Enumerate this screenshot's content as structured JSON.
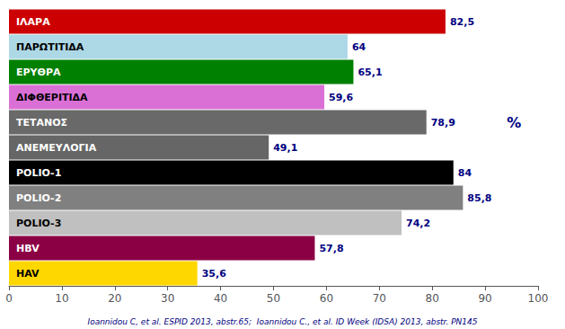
{
  "chart_data": {
    "type": "bar",
    "orientation": "horizontal",
    "categories": [
      "ΙΛΑΡΑ",
      "ΠΑΡΩΤΙΤΙΔΑ",
      "ΕΡΥΘΡΑ",
      "ΔΙΦΘΕΡΙΤΙΔΑ",
      "ΤΕΤΑΝΟΣ",
      "ΑΝΕΜΕΥΛΟΓΙΑ",
      "POLIO-1",
      "POLIO-2",
      "POLIO-3",
      "HBV",
      "HAV"
    ],
    "values": [
      82.5,
      64,
      65.1,
      59.6,
      78.9,
      49.1,
      84,
      85.8,
      74.2,
      57.8,
      35.6
    ],
    "value_labels": [
      "82,5",
      "64",
      "65,1",
      "59,6",
      "78,9",
      "49,1",
      "84",
      "85,8",
      "74,2",
      "57,8",
      "35,6"
    ],
    "data_labels": true,
    "colors": [
      "#cc0000",
      "#add8e6",
      "#008000",
      "#da70d6",
      "#696969",
      "#666666",
      "#000000",
      "#808080",
      "#c0c0c0",
      "#8b0045",
      "#ffd700"
    ],
    "xlim": [
      0,
      100
    ],
    "xticks": [
      0,
      10,
      20,
      30,
      40,
      50,
      60,
      70,
      80,
      90,
      100
    ],
    "grid": false,
    "annotations": [
      {
        "text": "%",
        "x": 94,
        "y": "ΤΕΤΑΝΟΣ"
      },
      {
        "text": "Ioannidou C, et al. ESPID 2013, abstr.65;  Ioannidou C., et al. ID Week (IDSA) 2013, abstr. PN145"
      }
    ]
  }
}
